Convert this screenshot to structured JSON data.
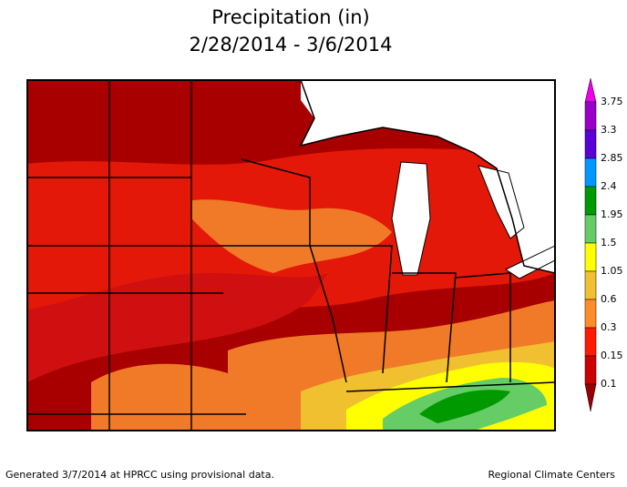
{
  "header": {
    "title": "Precipitation (in)",
    "subtitle": "2/28/2014 - 3/6/2014"
  },
  "legend": {
    "labels": [
      "3.75",
      "3.3",
      "2.85",
      "2.4",
      "1.95",
      "1.5",
      "1.05",
      "0.6",
      "0.3",
      "0.15",
      "0.1"
    ],
    "colors": [
      "#ee00ee",
      "#9900cc",
      "#5a00d8",
      "#0099ff",
      "#009900",
      "#66cc66",
      "#ffff00",
      "#f0c030",
      "#ff8c28",
      "#ff1a00",
      "#cc0000",
      "#990000"
    ]
  },
  "footer": {
    "left": "Generated 3/7/2014 at HPRCC using provisional data.",
    "right": "Regional Climate Centers"
  }
}
